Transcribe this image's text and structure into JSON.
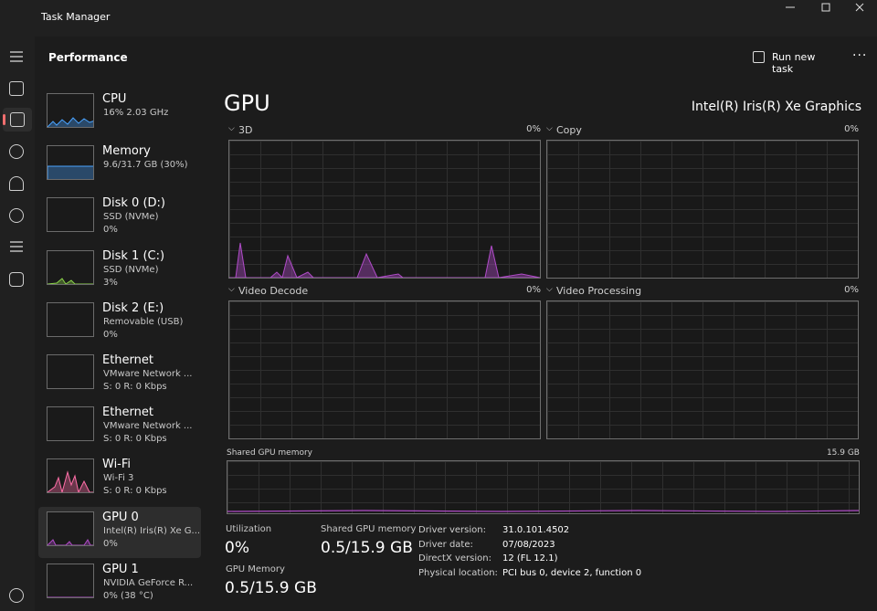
{
  "window": {
    "title": "Task Manager"
  },
  "header": {
    "section": "Performance",
    "action": "Run new task"
  },
  "sidebar": [
    {
      "name": "CPU",
      "lines": [
        "16% 2.03 GHz"
      ]
    },
    {
      "name": "Memory",
      "lines": [
        "9.6/31.7 GB (30%)"
      ]
    },
    {
      "name": "Disk 0 (D:)",
      "lines": [
        "SSD (NVMe)",
        "0%"
      ]
    },
    {
      "name": "Disk 1 (C:)",
      "lines": [
        "SSD (NVMe)",
        "3%"
      ]
    },
    {
      "name": "Disk 2 (E:)",
      "lines": [
        "Removable (USB)",
        "0%"
      ]
    },
    {
      "name": "Ethernet",
      "lines": [
        "VMware Network ...",
        "S: 0 R: 0 Kbps"
      ]
    },
    {
      "name": "Ethernet",
      "lines": [
        "VMware Network ...",
        "S: 0 R: 0 Kbps"
      ]
    },
    {
      "name": "Wi-Fi",
      "lines": [
        "Wi-Fi 3",
        "S: 0 R: 0 Kbps"
      ]
    },
    {
      "name": "GPU 0",
      "lines": [
        "Intel(R) Iris(R) Xe G...",
        "0%"
      ]
    },
    {
      "name": "GPU 1",
      "lines": [
        "NVIDIA GeForce R...",
        "0% (38 °C)"
      ]
    }
  ],
  "main": {
    "title": "GPU",
    "adapter": "Intel(R) Iris(R) Xe Graphics",
    "graphs": [
      {
        "label": "3D",
        "value": "0%"
      },
      {
        "label": "Copy",
        "value": "0%"
      },
      {
        "label": "Video Decode",
        "value": "0%"
      },
      {
        "label": "Video Processing",
        "value": "0%"
      }
    ],
    "memory_graph": {
      "label": "Shared GPU memory",
      "max": "15.9 GB"
    },
    "stats": [
      {
        "label": "Utilization",
        "value": "0%"
      },
      {
        "label": "Shared GPU memory",
        "value": "0.5/15.9 GB"
      },
      {
        "label": "GPU Memory",
        "value": "0.5/15.9 GB"
      }
    ],
    "details": [
      {
        "label": "Driver version:",
        "value": "31.0.101.4502"
      },
      {
        "label": "Driver date:",
        "value": "07/08/2023"
      },
      {
        "label": "DirectX version:",
        "value": "12 (FL 12.1)"
      },
      {
        "label": "Physical location:",
        "value": "PCI bus 0, device 2, function 0"
      }
    ]
  }
}
